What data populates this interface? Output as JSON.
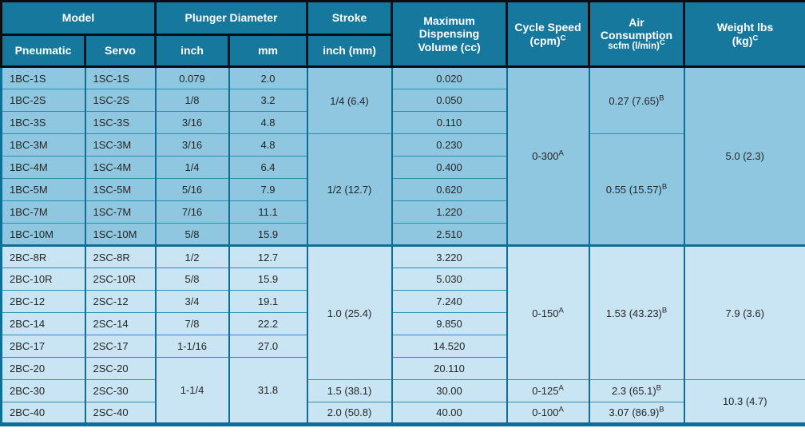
{
  "colors": {
    "header_bg": "#17789E",
    "header_grid": "#0B0D10",
    "section1_bg": "#8FC6E0",
    "section2_bg": "#C9E5F3",
    "grid": "#0E6F96",
    "grid_thin": "#2A8FB4",
    "body_text": "#262626",
    "header_text": "#FFFFFF"
  },
  "header": {
    "model": "Model",
    "pneumatic": "Pneumatic",
    "servo": "Servo",
    "plunger_diameter": "Plunger Diameter",
    "inch": "inch",
    "mm": "mm",
    "stroke": "Stroke",
    "stroke_sub": "inch (mm)",
    "volume_line1": "Maximum",
    "volume_line2": "Dispensing",
    "volume_line3": "Volume (cc)",
    "cycle_line1": "Cycle Speed",
    "cycle_line2": "(cpm)",
    "air_line1": "Air",
    "air_line2": "Consumption",
    "air_line3": "scfm (l/min)",
    "weight_line1": "Weight lbs",
    "weight_line2": "(kg)",
    "footnote_a": "A",
    "footnote_b": "B",
    "footnote_c": "C"
  },
  "chart_data": {
    "type": "table",
    "columns": [
      "Pneumatic",
      "Servo",
      "Plunger inch",
      "Plunger mm",
      "Stroke inch (mm)",
      "Max Dispensing Volume (cc)",
      "Cycle Speed (cpm)",
      "Air Consumption scfm (l/min)",
      "Weight lbs (kg)"
    ],
    "rows": [
      [
        "1BC-1S",
        "1SC-1S",
        "0.079",
        "2.0",
        "1/4 (6.4)",
        "0.020",
        "0-300",
        "0.27 (7.65)",
        "5.0 (2.3)"
      ],
      [
        "1BC-2S",
        "1SC-2S",
        "1/8",
        "3.2",
        "1/4 (6.4)",
        "0.050",
        "0-300",
        "0.27 (7.65)",
        "5.0 (2.3)"
      ],
      [
        "1BC-3S",
        "1SC-3S",
        "3/16",
        "4.8",
        "1/4 (6.4)",
        "0.110",
        "0-300",
        "0.27 (7.65)",
        "5.0 (2.3)"
      ],
      [
        "1BC-3M",
        "1SC-3M",
        "3/16",
        "4.8",
        "1/2 (12.7)",
        "0.230",
        "0-300",
        "0.55 (15.57)",
        "5.0 (2.3)"
      ],
      [
        "1BC-4M",
        "1SC-4M",
        "1/4",
        "6.4",
        "1/2 (12.7)",
        "0.400",
        "0-300",
        "0.55 (15.57)",
        "5.0 (2.3)"
      ],
      [
        "1BC-5M",
        "1SC-5M",
        "5/16",
        "7.9",
        "1/2 (12.7)",
        "0.620",
        "0-300",
        "0.55 (15.57)",
        "5.0 (2.3)"
      ],
      [
        "1BC-7M",
        "1SC-7M",
        "7/16",
        "11.1",
        "1/2 (12.7)",
        "1.220",
        "0-300",
        "0.55 (15.57)",
        "5.0 (2.3)"
      ],
      [
        "1BC-10M",
        "1SC-10M",
        "5/8",
        "15.9",
        "1/2 (12.7)",
        "2.510",
        "0-300",
        "0.55 (15.57)",
        "5.0 (2.3)"
      ],
      [
        "2BC-8R",
        "2SC-8R",
        "1/2",
        "12.7",
        "1.0 (25.4)",
        "3.220",
        "0-150",
        "1.53 (43.23)",
        "7.9 (3.6)"
      ],
      [
        "2BC-10R",
        "2SC-10R",
        "5/8",
        "15.9",
        "1.0 (25.4)",
        "5.030",
        "0-150",
        "1.53 (43.23)",
        "7.9 (3.6)"
      ],
      [
        "2BC-12",
        "2SC-12",
        "3/4",
        "19.1",
        "1.0 (25.4)",
        "7.240",
        "0-150",
        "1.53 (43.23)",
        "7.9 (3.6)"
      ],
      [
        "2BC-14",
        "2SC-14",
        "7/8",
        "22.2",
        "1.0 (25.4)",
        "9.850",
        "0-150",
        "1.53 (43.23)",
        "7.9 (3.6)"
      ],
      [
        "2BC-17",
        "2SC-17",
        "1-1/16",
        "27.0",
        "1.0 (25.4)",
        "14.520",
        "0-150",
        "1.53 (43.23)",
        "7.9 (3.6)"
      ],
      [
        "2BC-20",
        "2SC-20",
        "1-1/4",
        "31.8",
        "1.0 (25.4)",
        "20.110",
        "0-150",
        "1.53 (43.23)",
        "7.9 (3.6)"
      ],
      [
        "2BC-30",
        "2SC-30",
        "1-1/4",
        "31.8",
        "1.5 (38.1)",
        "30.00",
        "0-125",
        "2.3 (65.1)",
        "10.3 (4.7)"
      ],
      [
        "2BC-40",
        "2SC-40",
        "1-1/4",
        "31.8",
        "2.0 (50.8)",
        "40.00",
        "0-100",
        "3.07 (86.9)",
        "10.3 (4.7)"
      ]
    ]
  },
  "rows": [
    {
      "section": 1,
      "start": false,
      "cells": [
        {
          "t": "1BC-1S",
          "col": "pneumatic"
        },
        {
          "t": "1SC-1S",
          "col": "servo"
        },
        {
          "t": "0.079",
          "col": "inch"
        },
        {
          "t": "2.0",
          "col": "mm"
        },
        {
          "t": "1/4 (6.4)",
          "col": "stroke",
          "rs": 3
        },
        {
          "t": "0.020",
          "col": "volume"
        },
        {
          "t": "0-300",
          "sup": "A",
          "col": "cycle",
          "rs": 8
        },
        {
          "t": "0.27 (7.65)",
          "sup": "B",
          "col": "air",
          "rs": 3
        },
        {
          "t": "5.0 (2.3)",
          "col": "weight",
          "rs": 8
        }
      ]
    },
    {
      "section": 1,
      "start": false,
      "cells": [
        {
          "t": "1BC-2S",
          "col": "pneumatic"
        },
        {
          "t": "1SC-2S",
          "col": "servo"
        },
        {
          "t": "1/8",
          "col": "inch"
        },
        {
          "t": "3.2",
          "col": "mm"
        },
        {
          "t": "0.050",
          "col": "volume"
        }
      ]
    },
    {
      "section": 1,
      "start": false,
      "cells": [
        {
          "t": "1BC-3S",
          "col": "pneumatic"
        },
        {
          "t": "1SC-3S",
          "col": "servo"
        },
        {
          "t": "3/16",
          "col": "inch"
        },
        {
          "t": "4.8",
          "col": "mm"
        },
        {
          "t": "0.110",
          "col": "volume"
        }
      ]
    },
    {
      "section": 1,
      "start": false,
      "cells": [
        {
          "t": "1BC-3M",
          "col": "pneumatic"
        },
        {
          "t": "1SC-3M",
          "col": "servo"
        },
        {
          "t": "3/16",
          "col": "inch"
        },
        {
          "t": "4.8",
          "col": "mm"
        },
        {
          "t": "1/2 (12.7)",
          "col": "stroke",
          "rs": 5
        },
        {
          "t": "0.230",
          "col": "volume"
        },
        {
          "t": "0.55 (15.57)",
          "sup": "B",
          "col": "air",
          "rs": 5
        }
      ]
    },
    {
      "section": 1,
      "start": false,
      "cells": [
        {
          "t": "1BC-4M",
          "col": "pneumatic"
        },
        {
          "t": "1SC-4M",
          "col": "servo"
        },
        {
          "t": "1/4",
          "col": "inch"
        },
        {
          "t": "6.4",
          "col": "mm"
        },
        {
          "t": "0.400",
          "col": "volume"
        }
      ]
    },
    {
      "section": 1,
      "start": false,
      "cells": [
        {
          "t": "1BC-5M",
          "col": "pneumatic"
        },
        {
          "t": "1SC-5M",
          "col": "servo"
        },
        {
          "t": "5/16",
          "col": "inch"
        },
        {
          "t": "7.9",
          "col": "mm"
        },
        {
          "t": "0.620",
          "col": "volume"
        }
      ]
    },
    {
      "section": 1,
      "start": false,
      "cells": [
        {
          "t": "1BC-7M",
          "col": "pneumatic"
        },
        {
          "t": "1SC-7M",
          "col": "servo"
        },
        {
          "t": "7/16",
          "col": "inch"
        },
        {
          "t": "11.1",
          "col": "mm"
        },
        {
          "t": "1.220",
          "col": "volume"
        }
      ]
    },
    {
      "section": 1,
      "start": false,
      "cells": [
        {
          "t": "1BC-10M",
          "col": "pneumatic"
        },
        {
          "t": "1SC-10M",
          "col": "servo"
        },
        {
          "t": "5/8",
          "col": "inch"
        },
        {
          "t": "15.9",
          "col": "mm"
        },
        {
          "t": "2.510",
          "col": "volume"
        }
      ]
    },
    {
      "section": 2,
      "start": true,
      "cells": [
        {
          "t": "2BC-8R",
          "col": "pneumatic"
        },
        {
          "t": "2SC-8R",
          "col": "servo"
        },
        {
          "t": "1/2",
          "col": "inch"
        },
        {
          "t": "12.7",
          "col": "mm"
        },
        {
          "t": "1.0 (25.4)",
          "col": "stroke",
          "rs": 6
        },
        {
          "t": "3.220",
          "col": "volume"
        },
        {
          "t": "0-150",
          "sup": "A",
          "col": "cycle",
          "rs": 6
        },
        {
          "t": "1.53 (43.23)",
          "sup": "B",
          "col": "air",
          "rs": 6
        },
        {
          "t": "7.9 (3.6)",
          "col": "weight",
          "rs": 6
        }
      ]
    },
    {
      "section": 2,
      "start": false,
      "cells": [
        {
          "t": "2BC-10R",
          "col": "pneumatic"
        },
        {
          "t": "2SC-10R",
          "col": "servo"
        },
        {
          "t": "5/8",
          "col": "inch"
        },
        {
          "t": "15.9",
          "col": "mm"
        },
        {
          "t": "5.030",
          "col": "volume"
        }
      ]
    },
    {
      "section": 2,
      "start": false,
      "cells": [
        {
          "t": "2BC-12",
          "col": "pneumatic"
        },
        {
          "t": "2SC-12",
          "col": "servo"
        },
        {
          "t": "3/4",
          "col": "inch"
        },
        {
          "t": "19.1",
          "col": "mm"
        },
        {
          "t": "7.240",
          "col": "volume"
        }
      ]
    },
    {
      "section": 2,
      "start": false,
      "cells": [
        {
          "t": "2BC-14",
          "col": "pneumatic"
        },
        {
          "t": "2SC-14",
          "col": "servo"
        },
        {
          "t": "7/8",
          "col": "inch"
        },
        {
          "t": "22.2",
          "col": "mm"
        },
        {
          "t": "9.850",
          "col": "volume"
        }
      ]
    },
    {
      "section": 2,
      "start": false,
      "cells": [
        {
          "t": "2BC-17",
          "col": "pneumatic"
        },
        {
          "t": "2SC-17",
          "col": "servo"
        },
        {
          "t": "1-1/16",
          "col": "inch"
        },
        {
          "t": "27.0",
          "col": "mm"
        },
        {
          "t": "14.520",
          "col": "volume"
        }
      ]
    },
    {
      "section": 2,
      "start": false,
      "cells": [
        {
          "t": "2BC-20",
          "col": "pneumatic"
        },
        {
          "t": "2SC-20",
          "col": "servo"
        },
        {
          "t": "1-1/4",
          "col": "inch",
          "rs": 3
        },
        {
          "t": "31.8",
          "col": "mm",
          "rs": 3
        },
        {
          "t": "20.110",
          "col": "volume"
        }
      ]
    },
    {
      "section": 2,
      "start": false,
      "cells": [
        {
          "t": "2BC-30",
          "col": "pneumatic"
        },
        {
          "t": "2SC-30",
          "col": "servo"
        },
        {
          "t": "1.5 (38.1)",
          "col": "stroke"
        },
        {
          "t": "30.00",
          "col": "volume"
        },
        {
          "t": "0-125",
          "sup": "A",
          "col": "cycle"
        },
        {
          "t": "2.3 (65.1)",
          "sup": "B",
          "col": "air"
        },
        {
          "t": "10.3 (4.7)",
          "col": "weight",
          "rs": 2
        }
      ]
    },
    {
      "section": 2,
      "start": false,
      "cells": [
        {
          "t": "2BC-40",
          "col": "pneumatic"
        },
        {
          "t": "2SC-40",
          "col": "servo"
        },
        {
          "t": "2.0 (50.8)",
          "col": "stroke"
        },
        {
          "t": "40.00",
          "col": "volume"
        },
        {
          "t": "0-100",
          "sup": "A",
          "col": "cycle"
        },
        {
          "t": "3.07 (86.9)",
          "sup": "B",
          "col": "air"
        }
      ]
    }
  ]
}
